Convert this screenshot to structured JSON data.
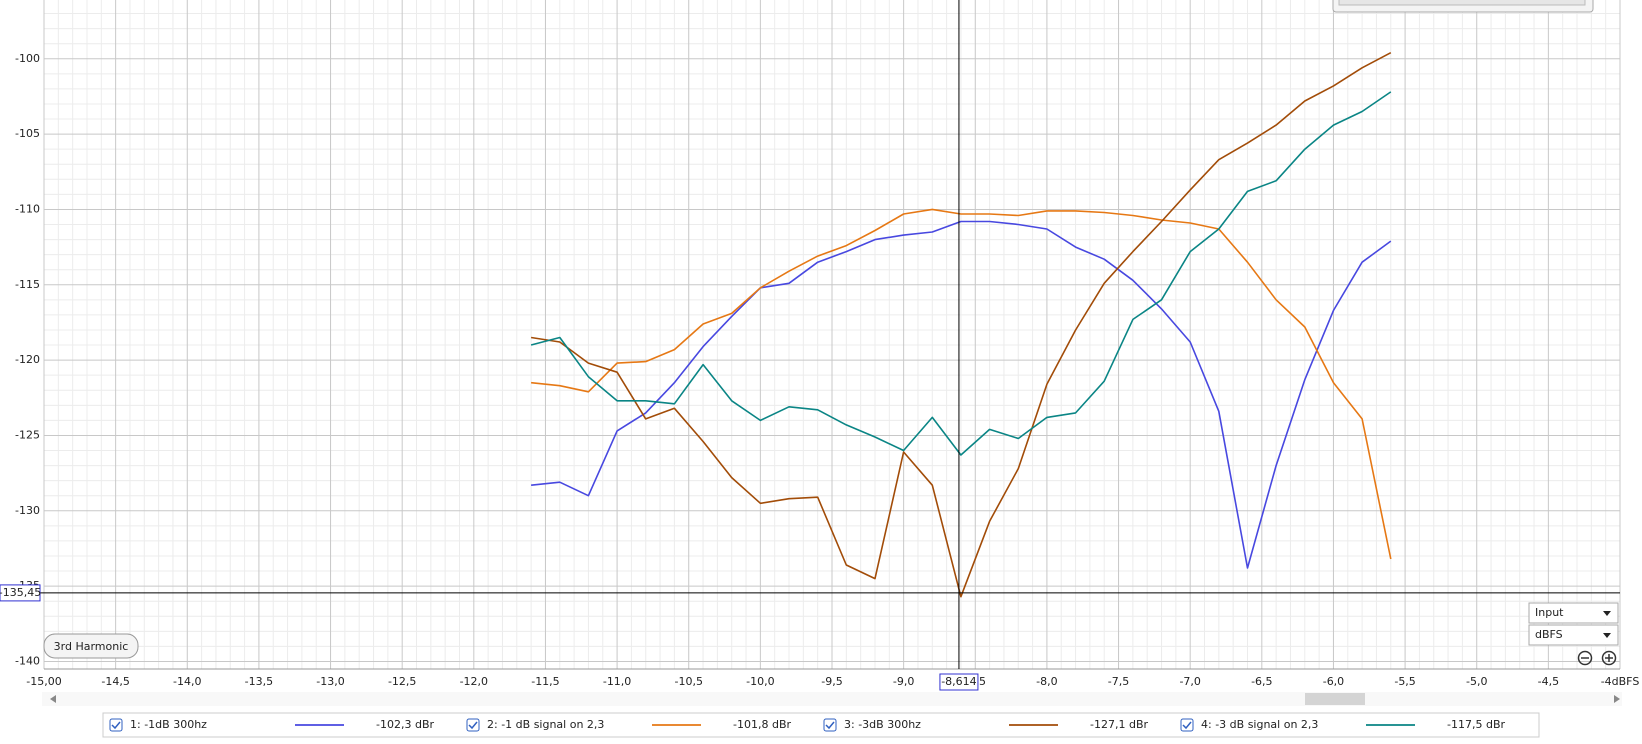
{
  "chart_data": {
    "type": "line",
    "xlim": [
      -15,
      -4
    ],
    "ylim": [
      -140.5,
      -96.1
    ],
    "xticks": [
      {
        "value": -15,
        "label": "-15,00"
      },
      {
        "value": -14.5,
        "label": "-14,5"
      },
      {
        "value": -14,
        "label": "-14,0"
      },
      {
        "value": -13.5,
        "label": "-13,5"
      },
      {
        "value": -13,
        "label": "-13,0"
      },
      {
        "value": -12.5,
        "label": "-12,5"
      },
      {
        "value": -12,
        "label": "-12,0"
      },
      {
        "value": -11.5,
        "label": "-11,5"
      },
      {
        "value": -11,
        "label": "-11,0"
      },
      {
        "value": -10.5,
        "label": "-10,5"
      },
      {
        "value": -10,
        "label": "-10,0"
      },
      {
        "value": -9.5,
        "label": "-9,5"
      },
      {
        "value": -9,
        "label": "-9,0"
      },
      {
        "value": -8.5,
        "label": "-8,5"
      },
      {
        "value": -8,
        "label": "-8,0"
      },
      {
        "value": -7.5,
        "label": "-7,5"
      },
      {
        "value": -7,
        "label": "-7,0"
      },
      {
        "value": -6.5,
        "label": "-6,5"
      },
      {
        "value": -6,
        "label": "-6,0"
      },
      {
        "value": -5.5,
        "label": "-5,5"
      },
      {
        "value": -5,
        "label": "-5,0"
      },
      {
        "value": -4.5,
        "label": "-4,5"
      },
      {
        "value": -4,
        "label": "-4dBFS"
      }
    ],
    "yticks": [
      -100,
      -105,
      -110,
      -115,
      -120,
      -125,
      -130,
      -135,
      -140
    ],
    "grid": true,
    "cursor": {
      "x": -8.614,
      "x_label": "-8,614",
      "y": -135.45,
      "y_label": "-135,45"
    },
    "x": [
      -11.6,
      -11.4,
      -11.2,
      -11.0,
      -10.8,
      -10.6,
      -10.4,
      -10.2,
      -10.0,
      -9.8,
      -9.6,
      -9.4,
      -9.2,
      -9.0,
      -8.8,
      -8.6,
      -8.4,
      -8.2,
      -8.0,
      -7.8,
      -7.6,
      -7.4,
      -7.2,
      -7.0,
      -6.8,
      -6.6,
      -6.4,
      -6.2,
      -6.0,
      -5.8,
      -5.6
    ],
    "series": [
      {
        "name": "1: -1dB 300hz",
        "color": "#4848e0",
        "readout": {
          "value": -102.3,
          "label": "-102,3 dBr"
        },
        "values": [
          -128.3,
          -128.1,
          -129.0,
          -124.7,
          -123.5,
          -121.5,
          -119.1,
          -117.1,
          -115.2,
          -114.9,
          -113.5,
          -112.8,
          -112.0,
          -111.7,
          -111.5,
          -110.8,
          -110.8,
          -111.0,
          -111.3,
          -112.5,
          -113.3,
          -114.7,
          -116.6,
          -118.8,
          -123.4,
          -133.8,
          -127.0,
          -121.3,
          -116.7,
          -113.5,
          -112.1
        ]
      },
      {
        "name": "2: -1 dB signal on 2,3",
        "color": "#e67814",
        "readout": {
          "value": -101.8,
          "label": "-101,8 dBr"
        },
        "values": [
          -121.5,
          -121.7,
          -122.1,
          -120.2,
          -120.1,
          -119.3,
          -117.6,
          -116.9,
          -115.2,
          -114.1,
          -113.1,
          -112.4,
          -111.4,
          -110.3,
          -110.0,
          -110.3,
          -110.3,
          -110.4,
          -110.1,
          -110.1,
          -110.2,
          -110.4,
          -110.7,
          -110.9,
          -111.3,
          -113.5,
          -116.0,
          -117.8,
          -121.5,
          -123.9,
          -133.2
        ]
      },
      {
        "name": "3: -3dB 300hz",
        "color": "#a24c08",
        "readout": {
          "value": -127.1,
          "label": "-127,1 dBr"
        },
        "values": [
          -118.5,
          -118.8,
          -120.2,
          -120.8,
          -123.9,
          -123.2,
          -125.4,
          -127.8,
          -129.5,
          -129.2,
          -129.1,
          -133.6,
          -134.5,
          -126.1,
          -128.3,
          -135.7,
          -130.7,
          -127.2,
          -121.6,
          -118.0,
          -114.9,
          -112.8,
          -110.8,
          -108.7,
          -106.7,
          -105.6,
          -104.4,
          -102.8,
          -101.8,
          -100.6,
          -99.6
        ]
      },
      {
        "name": "4: -3 dB signal on 2,3",
        "color": "#0a8585",
        "readout": {
          "value": -117.5,
          "label": "-117,5 dBr"
        },
        "values": [
          -119.0,
          -118.5,
          -121.1,
          -122.7,
          -122.7,
          -122.9,
          -120.3,
          -122.7,
          -124.0,
          -123.1,
          -123.3,
          -124.3,
          -125.1,
          -126.0,
          -123.8,
          -126.3,
          -124.6,
          -125.2,
          -123.8,
          -123.5,
          -121.4,
          -117.3,
          -116.0,
          -112.8,
          -111.3,
          -108.8,
          -108.1,
          -106.0,
          -104.4,
          -103.5,
          -102.2
        ]
      }
    ]
  },
  "controls": {
    "mode_button": "3rd Harmonic",
    "input_select": "Input",
    "unit_select": "dBFS"
  }
}
